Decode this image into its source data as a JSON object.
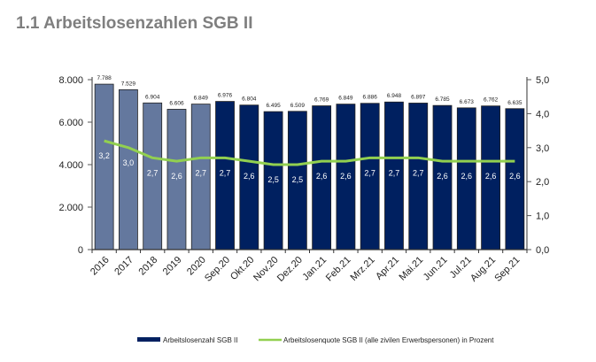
{
  "title": "1.1  Arbeitslosenzahlen SGB II",
  "chart_data": {
    "type": "bar+line",
    "categories": [
      "2016",
      "2017",
      "2018",
      "2019",
      "2020",
      "Sep.20",
      "Okt.20",
      "Nov.20",
      "Dez.20",
      "Jan.21",
      "Feb.21",
      "Mrz.21",
      "Apr.21",
      "Mai.21",
      "Jun.21",
      "Jul.21",
      "Aug.21",
      "Sep.21"
    ],
    "series": [
      {
        "name": "Arbeitslosenzahl SGB II",
        "type": "bar",
        "axis": "left",
        "values": [
          7788,
          7529,
          6904,
          6606,
          6849,
          6976,
          6804,
          6495,
          6509,
          6769,
          6849,
          6886,
          6948,
          6897,
          6785,
          6673,
          6762,
          6635
        ],
        "labels": [
          "7.788",
          "7.529",
          "6.904",
          "6.606",
          "6.849",
          "6.976",
          "6.804",
          "6.495",
          "6.509",
          "6.769",
          "6.849",
          "6.886",
          "6.948",
          "6.897",
          "6.785",
          "6.673",
          "6.762",
          "6.635"
        ]
      },
      {
        "name": "Arbeitslosenquote SGB II (alle zivilen Erwerbspersonen) in Prozent",
        "type": "line",
        "axis": "right",
        "values": [
          3.2,
          3.0,
          2.7,
          2.6,
          2.7,
          2.7,
          2.6,
          2.5,
          2.5,
          2.6,
          2.6,
          2.7,
          2.7,
          2.7,
          2.6,
          2.6,
          2.6,
          2.6
        ],
        "labels": [
          "3,2",
          "3,0",
          "2,7",
          "2,6",
          "2,7",
          "2,7",
          "2,6",
          "2,5",
          "2,5",
          "2,6",
          "2,6",
          "2,7",
          "2,7",
          "2,7",
          "2,6",
          "2,6",
          "2,6",
          "2,6"
        ]
      }
    ],
    "ylim_left": [
      0,
      8000
    ],
    "yticks_left": [
      "0",
      "2.000",
      "4.000",
      "6.000",
      "8.000"
    ],
    "ylim_right": [
      0,
      5
    ],
    "yticks_right": [
      "0,0",
      "1,0",
      "2,0",
      "3,0",
      "4,0",
      "5,0"
    ],
    "colors": {
      "annual_bar": "#64789e",
      "monthly_bar": "#002060",
      "line": "#92d050"
    },
    "legend": "bottom",
    "grid": false
  }
}
